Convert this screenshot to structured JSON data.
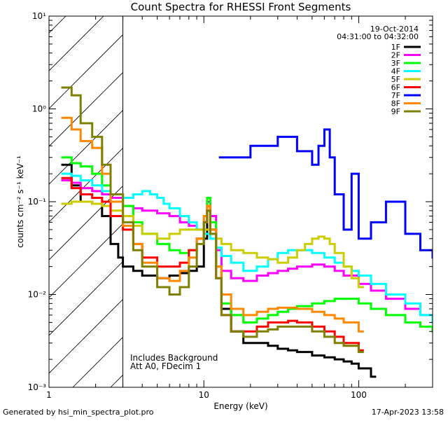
{
  "chart_data": {
    "type": "line",
    "title": "Count Spectra for RHESSI Front Segments",
    "xlabel": "Energy (keV)",
    "ylabel": "counts cm⁻² s⁻¹ keV⁻¹",
    "x_scale": "log",
    "y_scale": "log",
    "xlim": [
      1,
      300
    ],
    "ylim": [
      0.001,
      10
    ],
    "x_ticks": [
      {
        "value": 1,
        "label": "1"
      },
      {
        "value": 10,
        "label": "10"
      },
      {
        "value": 100,
        "label": "100"
      }
    ],
    "y_ticks": [
      {
        "value": 0.001,
        "label": "10⁻³"
      },
      {
        "value": 0.01,
        "label": "10⁻²"
      },
      {
        "value": 0.1,
        "label": "10⁻¹"
      },
      {
        "value": 1,
        "label": "10⁰"
      },
      {
        "value": 10,
        "label": "10¹"
      }
    ],
    "hatched_region_x": [
      1,
      3
    ],
    "date": "19-Oct-2014",
    "time_range": "04:31:00 to 04:32:00",
    "annotations": [
      "Includes Background",
      "Att A0, FDecim 1"
    ],
    "series": [
      {
        "name": "1F",
        "color": "#000000",
        "x": [
          1.2,
          1.4,
          1.6,
          1.9,
          2.2,
          2.5,
          2.8,
          3.0,
          3.5,
          4.0,
          5.0,
          6.0,
          7.0,
          8.0,
          9.0,
          10.0,
          10.5,
          11.0,
          12.0,
          13.0,
          15.0,
          18.0,
          22.0,
          26.0,
          30.0,
          35.0,
          40.0,
          50.0,
          60.0,
          70.0,
          80.0,
          90.0,
          100.0,
          120.0
        ],
        "y": [
          0.25,
          0.15,
          0.1,
          0.095,
          0.07,
          0.035,
          0.025,
          0.02,
          0.018,
          0.016,
          0.015,
          0.016,
          0.017,
          0.018,
          0.02,
          0.04,
          0.08,
          0.05,
          0.02,
          0.007,
          0.004,
          0.003,
          0.003,
          0.0028,
          0.0026,
          0.0025,
          0.0024,
          0.0022,
          0.0021,
          0.002,
          0.0019,
          0.0018,
          0.0016,
          0.0013
        ]
      },
      {
        "name": "2F",
        "color": "#ff00ff",
        "x": [
          1.2,
          1.4,
          1.6,
          1.9,
          2.2,
          2.5,
          3.0,
          3.5,
          4.0,
          5.0,
          6.0,
          7.0,
          8.0,
          9.0,
          10.0,
          10.5,
          11.0,
          12.0,
          13.0,
          15.0,
          18.0,
          22.0,
          26.0,
          30.0,
          35.0,
          40.0,
          45.0,
          50.0,
          60.0,
          70.0,
          80.0,
          100.0,
          120.0,
          150.0,
          200.0,
          250.0,
          300.0
        ],
        "y": [
          0.17,
          0.16,
          0.14,
          0.13,
          0.12,
          0.11,
          0.09,
          0.085,
          0.08,
          0.075,
          0.07,
          0.06,
          0.055,
          0.05,
          0.06,
          0.1,
          0.07,
          0.03,
          0.018,
          0.015,
          0.014,
          0.016,
          0.017,
          0.018,
          0.019,
          0.02,
          0.02,
          0.021,
          0.02,
          0.018,
          0.016,
          0.013,
          0.011,
          0.009,
          0.007,
          0.006,
          0.005
        ]
      },
      {
        "name": "3F",
        "color": "#00ff00",
        "x": [
          1.2,
          1.4,
          1.6,
          1.9,
          2.2,
          2.5,
          3.0,
          3.5,
          4.0,
          5.0,
          6.0,
          7.0,
          8.0,
          9.0,
          10.0,
          10.5,
          11.0,
          12.0,
          13.0,
          15.0,
          18.0,
          22.0,
          26.0,
          30.0,
          35.0,
          40.0,
          50.0,
          60.0,
          70.0,
          80.0,
          100.0,
          120.0,
          150.0,
          200.0,
          250.0,
          300.0
        ],
        "y": [
          0.3,
          0.26,
          0.24,
          0.2,
          0.15,
          0.12,
          0.09,
          0.06,
          0.045,
          0.035,
          0.03,
          0.028,
          0.03,
          0.04,
          0.07,
          0.11,
          0.06,
          0.02,
          0.008,
          0.006,
          0.005,
          0.0055,
          0.006,
          0.0065,
          0.007,
          0.0075,
          0.008,
          0.0085,
          0.009,
          0.009,
          0.008,
          0.007,
          0.006,
          0.005,
          0.0045,
          0.004
        ]
      },
      {
        "name": "4F",
        "color": "#00ffff",
        "x": [
          1.2,
          1.4,
          1.6,
          1.9,
          2.2,
          2.5,
          3.0,
          3.5,
          4.0,
          4.5,
          5.0,
          5.5,
          6.0,
          7.0,
          8.0,
          9.0,
          10.0,
          11.0,
          12.0,
          13.0,
          15.0,
          18.0,
          22.0,
          26.0,
          30.0,
          35.0,
          40.0,
          50.0,
          60.0,
          70.0,
          80.0,
          90.0,
          100.0,
          120.0,
          150.0,
          200.0,
          250.0,
          300.0
        ],
        "y": [
          0.2,
          0.19,
          0.17,
          0.15,
          0.13,
          0.12,
          0.11,
          0.12,
          0.13,
          0.12,
          0.11,
          0.095,
          0.085,
          0.07,
          0.06,
          0.05,
          0.045,
          0.04,
          0.032,
          0.026,
          0.022,
          0.018,
          0.02,
          0.024,
          0.028,
          0.03,
          0.03,
          0.028,
          0.025,
          0.022,
          0.02,
          0.018,
          0.016,
          0.013,
          0.01,
          0.008,
          0.006,
          0.005
        ]
      },
      {
        "name": "5F",
        "color": "#cccc00",
        "x": [
          1.2,
          1.4,
          1.6,
          1.9,
          2.2,
          2.5,
          3.0,
          3.5,
          4.0,
          5.0,
          6.0,
          7.0,
          8.0,
          9.0,
          10.0,
          11.0,
          12.0,
          13.0,
          15.0,
          18.0,
          22.0,
          26.0,
          30.0,
          35.0,
          40.0,
          45.0,
          50.0,
          55.0,
          60.0,
          65.0,
          70.0,
          80.0,
          90.0,
          100.0
        ],
        "y": [
          0.095,
          0.1,
          0.1,
          0.095,
          0.09,
          0.08,
          0.07,
          0.055,
          0.045,
          0.04,
          0.045,
          0.05,
          0.05,
          0.05,
          0.05,
          0.045,
          0.04,
          0.035,
          0.03,
          0.028,
          0.025,
          0.024,
          0.022,
          0.025,
          0.03,
          0.035,
          0.04,
          0.042,
          0.04,
          0.035,
          0.028,
          0.02,
          0.015,
          0.012
        ]
      },
      {
        "name": "6F",
        "color": "#ff0000",
        "x": [
          1.2,
          1.4,
          1.6,
          1.9,
          2.2,
          2.5,
          3.0,
          3.5,
          4.0,
          5.0,
          6.0,
          7.0,
          8.0,
          9.0,
          10.0,
          10.5,
          11.0,
          12.0,
          13.0,
          15.0,
          18.0,
          22.0,
          26.0,
          30.0,
          35.0,
          40.0,
          50.0,
          60.0,
          70.0,
          80.0,
          100.0
        ],
        "y": [
          0.18,
          0.14,
          0.12,
          0.11,
          0.1,
          0.07,
          0.05,
          0.035,
          0.025,
          0.02,
          0.02,
          0.022,
          0.03,
          0.04,
          0.06,
          0.09,
          0.05,
          0.015,
          0.006,
          0.004,
          0.004,
          0.0045,
          0.005,
          0.005,
          0.0052,
          0.005,
          0.0045,
          0.004,
          0.0035,
          0.003,
          0.0025
        ]
      },
      {
        "name": "7F",
        "color": "#0000ff",
        "x": [
          12.5,
          20.0,
          30.0,
          40.0,
          50.0,
          55.0,
          60.0,
          65.0,
          70.0,
          80.0,
          90.0,
          100.0,
          120.0,
          150.0,
          200.0,
          250.0,
          300.0
        ],
        "y": [
          0.3,
          0.4,
          0.5,
          0.35,
          0.25,
          0.4,
          0.6,
          0.3,
          0.12,
          0.05,
          0.2,
          0.04,
          0.06,
          0.1,
          0.045,
          0.03,
          0.025
        ]
      },
      {
        "name": "8F",
        "color": "#ff8800",
        "x": [
          1.2,
          1.4,
          1.6,
          1.9,
          2.2,
          2.5,
          3.0,
          3.5,
          4.0,
          5.0,
          6.0,
          7.0,
          8.0,
          9.0,
          10.0,
          10.5,
          11.0,
          12.0,
          13.0,
          15.0,
          18.0,
          22.0,
          26.0,
          30.0,
          35.0,
          40.0,
          50.0,
          60.0,
          70.0,
          80.0,
          100.0
        ],
        "y": [
          0.8,
          0.6,
          0.45,
          0.38,
          0.2,
          0.1,
          0.055,
          0.035,
          0.022,
          0.015,
          0.014,
          0.018,
          0.025,
          0.04,
          0.07,
          0.09,
          0.05,
          0.02,
          0.01,
          0.007,
          0.006,
          0.0065,
          0.007,
          0.0072,
          0.0072,
          0.007,
          0.0065,
          0.006,
          0.0055,
          0.005,
          0.004
        ]
      },
      {
        "name": "9F",
        "color": "#808000",
        "x": [
          1.2,
          1.4,
          1.6,
          1.9,
          2.2,
          2.5,
          3.0,
          3.5,
          4.0,
          5.0,
          6.0,
          7.0,
          8.0,
          9.0,
          10.0,
          10.5,
          11.0,
          12.0,
          13.0,
          15.0,
          18.0,
          22.0,
          26.0,
          30.0,
          35.0,
          40.0,
          50.0,
          60.0,
          70.0,
          80.0,
          100.0
        ],
        "y": [
          1.7,
          1.4,
          0.7,
          0.5,
          0.25,
          0.12,
          0.06,
          0.03,
          0.02,
          0.012,
          0.01,
          0.012,
          0.02,
          0.035,
          0.06,
          0.08,
          0.045,
          0.015,
          0.006,
          0.004,
          0.0035,
          0.004,
          0.0042,
          0.0045,
          0.0045,
          0.0045,
          0.004,
          0.0035,
          0.003,
          0.0028,
          0.0024
        ]
      }
    ]
  },
  "footer": {
    "generated_by": "Generated by hsi_min_spectra_plot.pro",
    "timestamp": "17-Apr-2023 13:58"
  }
}
